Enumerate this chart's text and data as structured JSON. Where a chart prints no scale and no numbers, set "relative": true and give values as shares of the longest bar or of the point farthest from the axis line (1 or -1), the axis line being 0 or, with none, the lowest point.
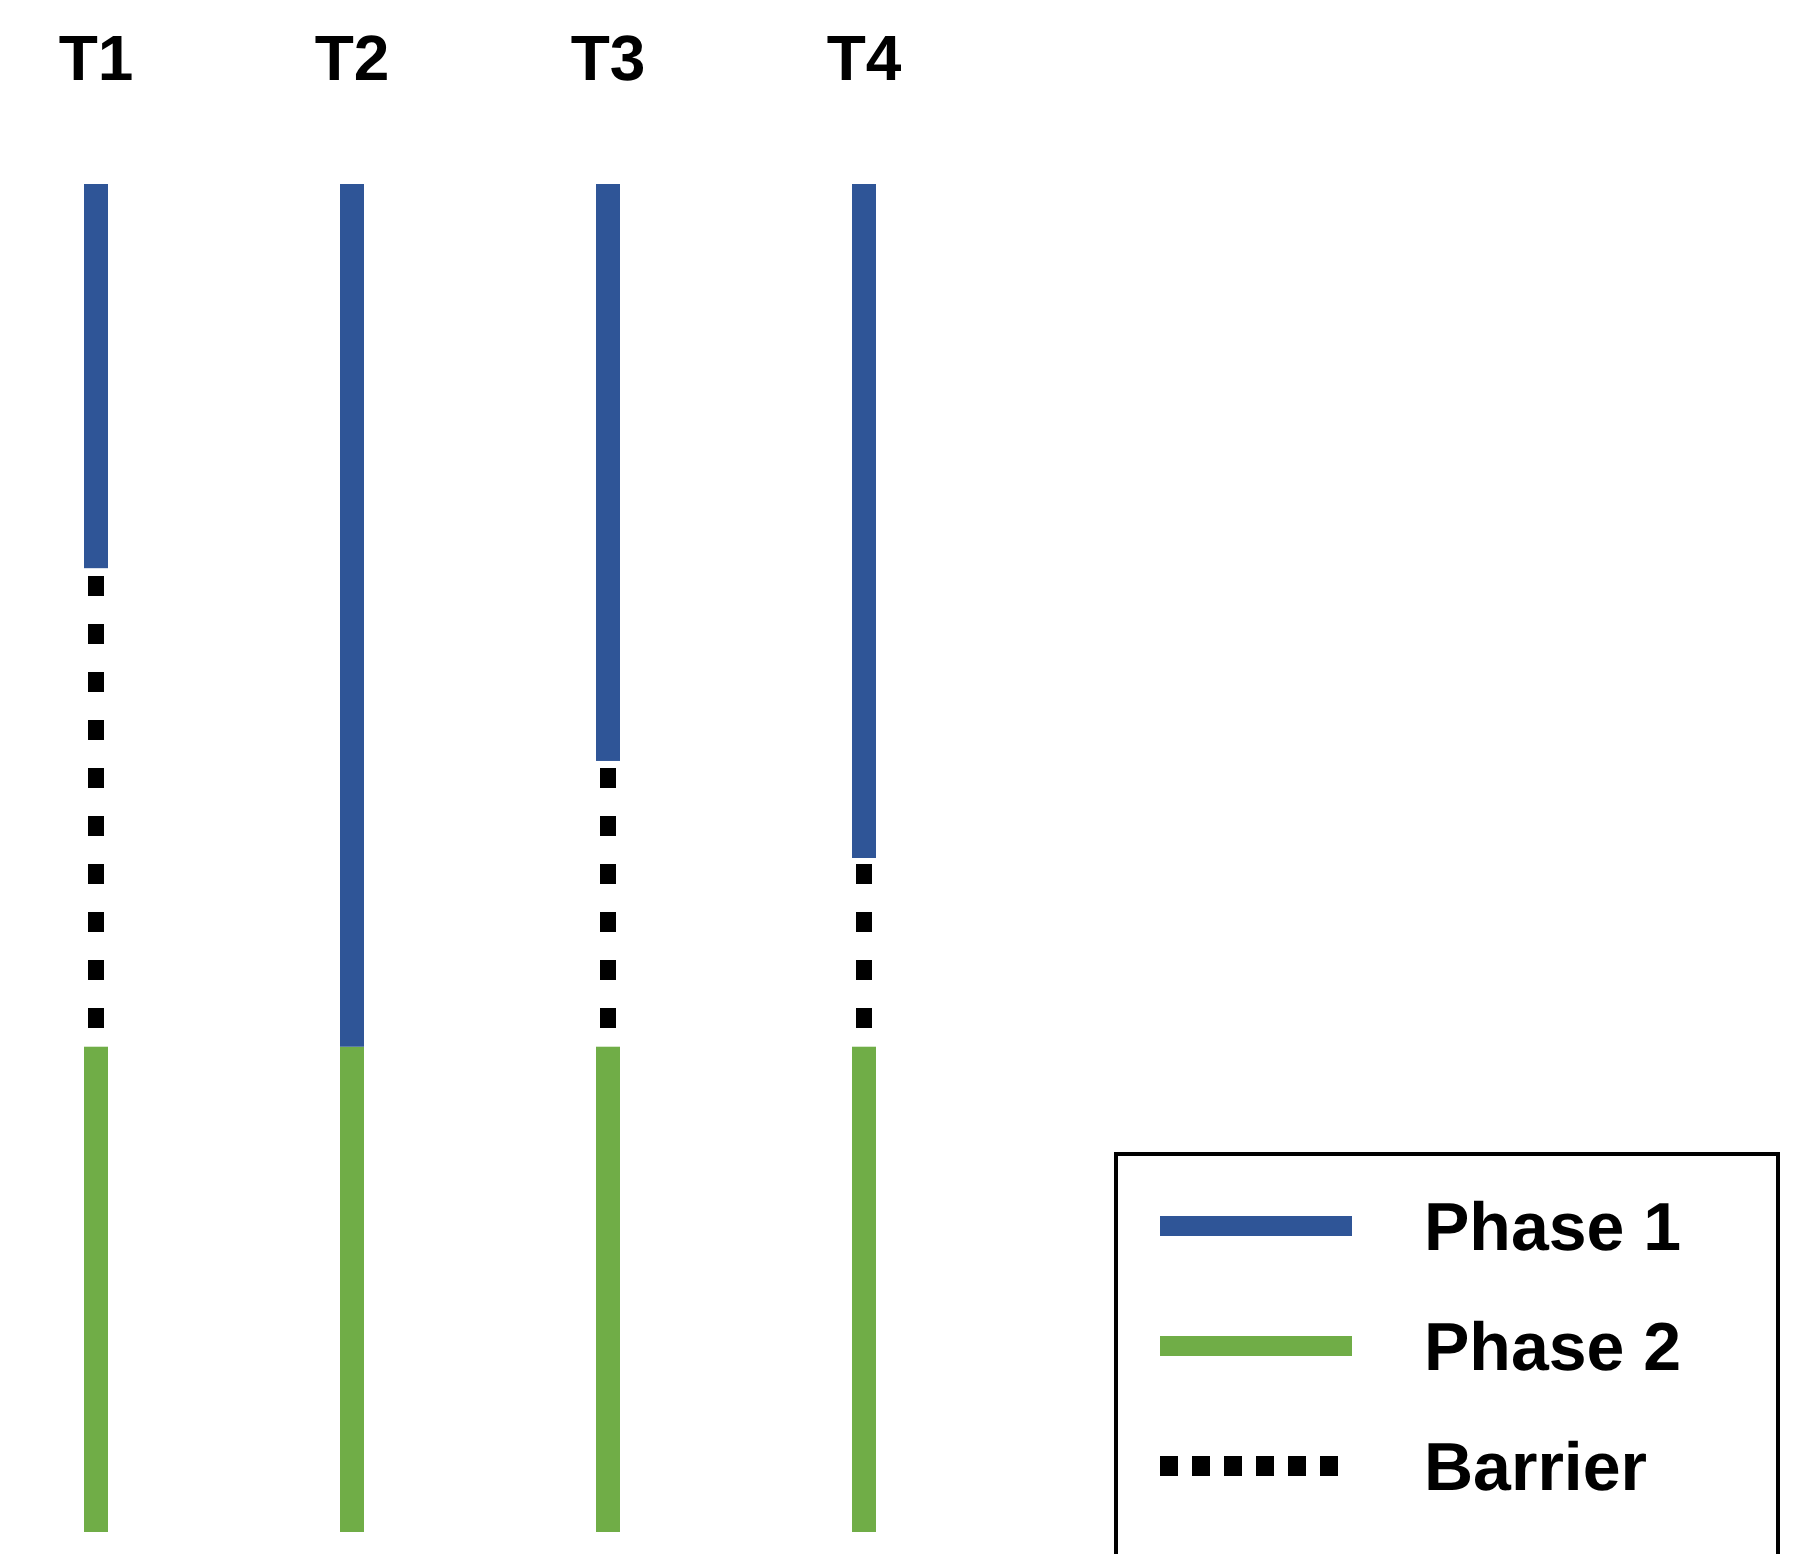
{
  "chart_data": {
    "type": "bar",
    "stacked": true,
    "relative": true,
    "categories": [
      "T1",
      "T2",
      "T3",
      "T4"
    ],
    "legend": "bottom right",
    "series": [
      {
        "name": "Phase 2",
        "color": "#70ad47",
        "values": [
          0.36,
          0.36,
          0.36,
          0.36
        ]
      },
      {
        "name": "Barrier",
        "color": "#000000",
        "line_style": "dotted",
        "values": [
          0.355,
          0,
          0.212,
          0.14
        ]
      },
      {
        "name": "Phase 1",
        "color": "#2f5597",
        "values": [
          0.285,
          0.64,
          0.428,
          0.5
        ]
      }
    ]
  }
}
